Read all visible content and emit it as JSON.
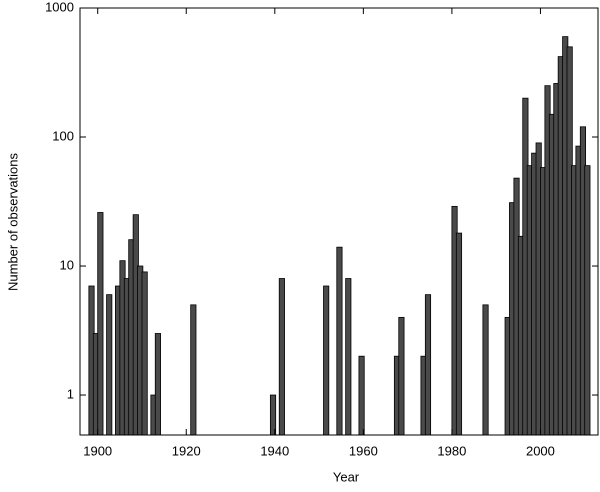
{
  "chart_data": {
    "type": "bar",
    "x_label": "Year",
    "y_label": "Number of observations",
    "x": [
      1898,
      1899,
      1900,
      1902,
      1904,
      1905,
      1906,
      1907,
      1908,
      1909,
      1910,
      1912,
      1913,
      1921,
      1939,
      1941,
      1951,
      1954,
      1956,
      1959,
      1967,
      1968,
      1973,
      1974,
      1980,
      1981,
      1987,
      1992,
      1993,
      1994,
      1995,
      1996,
      1997,
      1998,
      1999,
      2000,
      2001,
      2002,
      2003,
      2004,
      2005,
      2006,
      2007,
      2008,
      2009,
      2010
    ],
    "values": [
      7,
      3,
      26,
      6,
      7,
      11,
      8,
      16,
      25,
      10,
      9,
      1,
      3,
      5,
      1,
      8,
      7,
      14,
      8,
      2,
      2,
      4,
      2,
      6,
      29,
      18,
      5,
      4,
      31,
      48,
      17,
      200,
      60,
      75,
      90,
      58,
      250,
      150,
      260,
      420,
      600,
      500,
      60,
      85,
      120,
      60
    ],
    "color": "#4a4a4a",
    "xlim": [
      1896,
      2013
    ],
    "xticks": [
      1900,
      1920,
      1940,
      1960,
      1980,
      2000
    ],
    "ylim": [
      0.49,
      1000
    ],
    "yticks": [
      1,
      10,
      100,
      1000
    ],
    "log_y": true
  }
}
